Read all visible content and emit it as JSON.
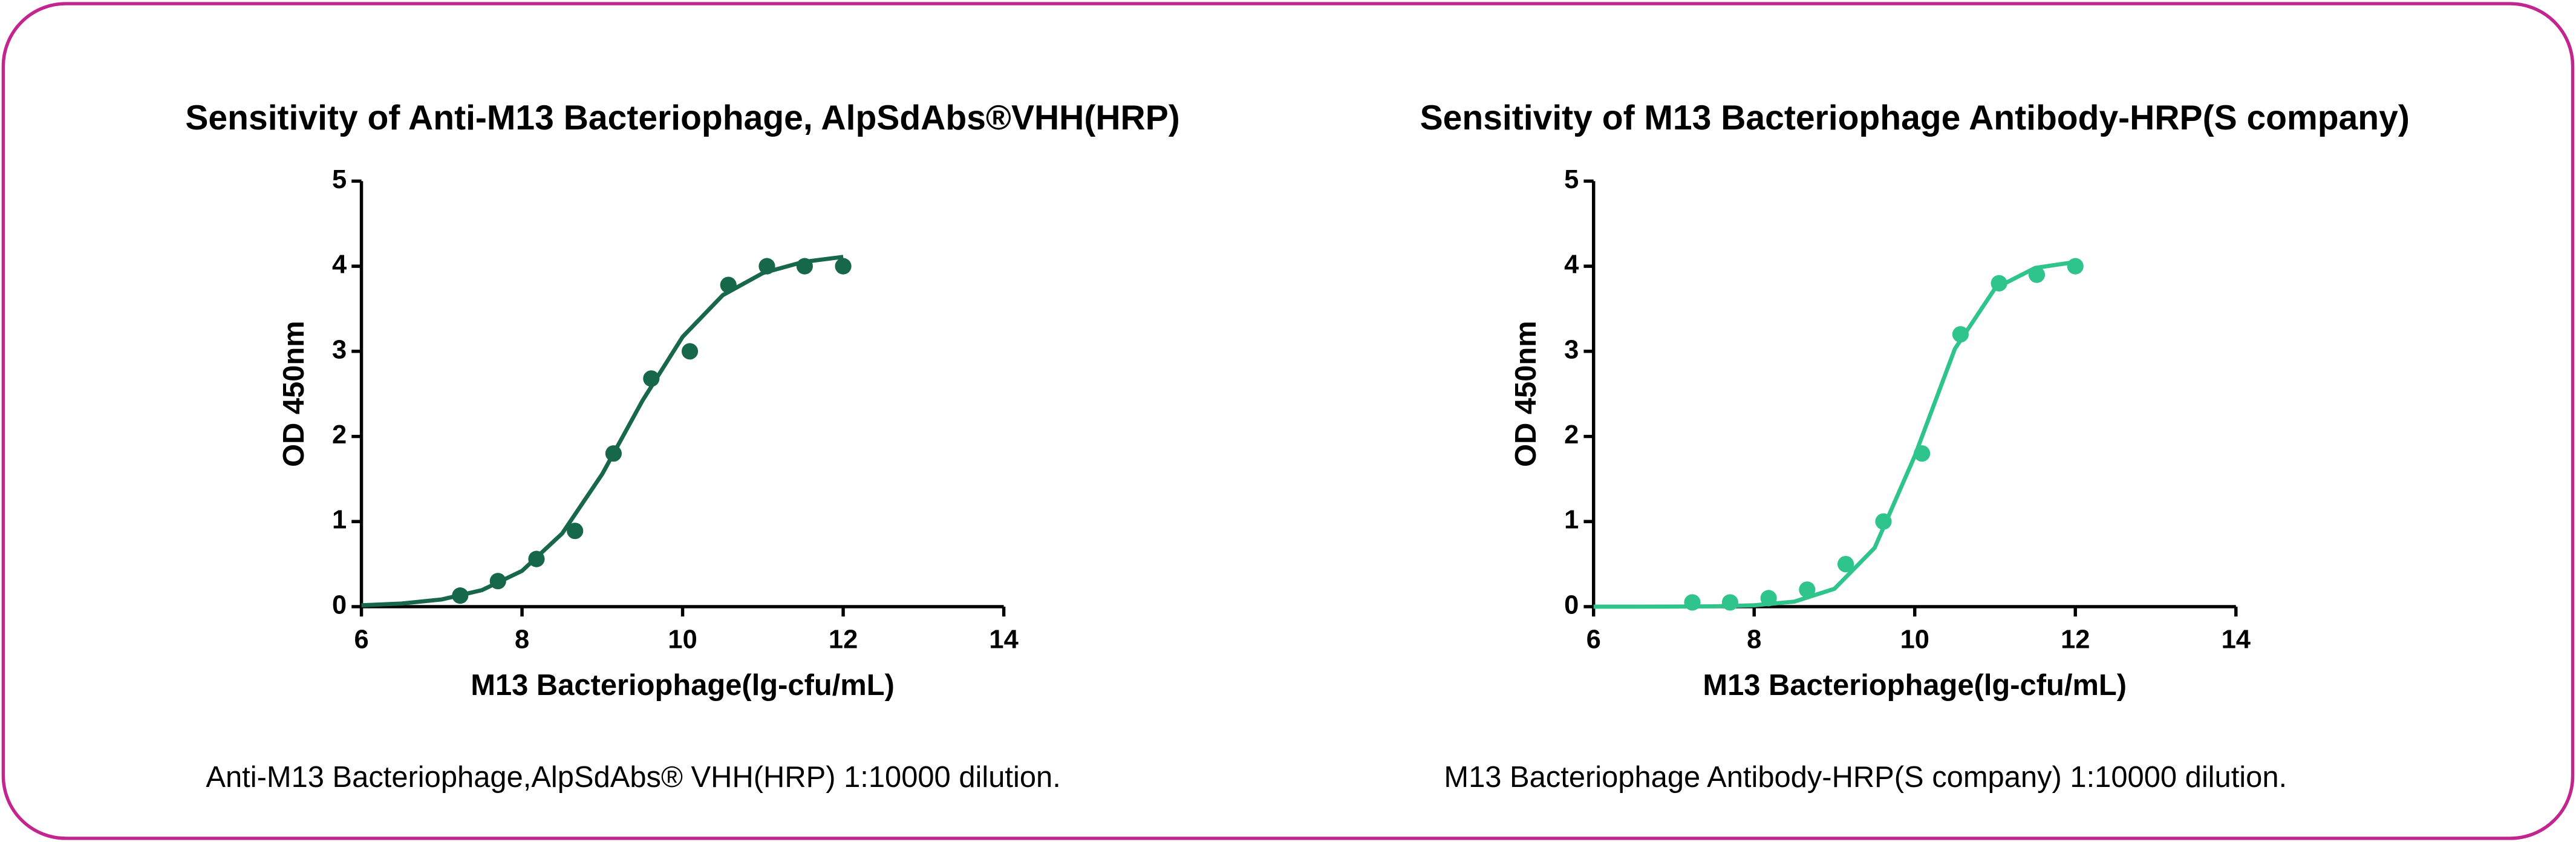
{
  "chart_data": [
    {
      "type": "scatter",
      "title": "Sensitivity of Anti-M13 Bacteriophage, AlpSdAbs®VHH(HRP)",
      "xlabel": "M13 Bacteriophage(lg-cfu/mL)",
      "ylabel": "OD 450nm",
      "caption": "Anti-M13 Bacteriophage,AlpSdAbs® VHH(HRP) 1:10000 dilution.",
      "xlim": [
        6,
        14
      ],
      "xticks": [
        6,
        8,
        10,
        12,
        14
      ],
      "ylim": [
        0,
        5
      ],
      "yticks": [
        0,
        1,
        2,
        3,
        4,
        5
      ],
      "series": [
        {
          "mode": "markers",
          "color": "#17684a",
          "x": [
            7.23,
            7.7,
            8.18,
            8.66,
            9.14,
            9.61,
            10.09,
            10.57,
            11.05,
            11.52,
            12
          ],
          "values": [
            0.13,
            0.3,
            0.56,
            0.89,
            1.8,
            2.68,
            3.0,
            3.78,
            4.0,
            4.0,
            4.0
          ]
        },
        {
          "mode": "line",
          "color": "#17684a",
          "x": [
            6,
            6.5,
            7,
            7.5,
            8,
            8.5,
            9,
            9.5,
            10,
            10.5,
            11,
            11.5,
            12
          ],
          "values": [
            0.016,
            0.037,
            0.085,
            0.194,
            0.42,
            0.86,
            1.56,
            2.42,
            3.17,
            3.66,
            3.92,
            4.05,
            4.11
          ]
        }
      ]
    },
    {
      "type": "scatter",
      "title": "Sensitivity of M13 Bacteriophage Antibody-HRP(S company)",
      "xlabel": "M13 Bacteriophage(lg-cfu/mL)",
      "ylabel": "OD 450nm",
      "caption": "M13 Bacteriophage Antibody-HRP(S company) 1:10000 dilution.",
      "xlim": [
        6,
        14
      ],
      "xticks": [
        6,
        8,
        10,
        12,
        14
      ],
      "ylim": [
        0,
        5
      ],
      "yticks": [
        0,
        1,
        2,
        3,
        4,
        5
      ],
      "series": [
        {
          "mode": "markers",
          "color": "#2ec48c",
          "x": [
            7.23,
            7.7,
            8.18,
            8.66,
            9.14,
            9.61,
            10.09,
            10.57,
            11.05,
            11.52,
            12
          ],
          "values": [
            0.05,
            0.05,
            0.1,
            0.2,
            0.5,
            1.0,
            1.8,
            3.2,
            3.8,
            3.9,
            4.0
          ]
        },
        {
          "mode": "line",
          "color": "#2ec48c",
          "x": [
            6,
            6.5,
            7,
            7.5,
            8,
            8.5,
            9,
            9.5,
            10,
            10.5,
            11,
            11.5,
            12
          ],
          "values": [
            0.0,
            0.0,
            0.001,
            0.004,
            0.016,
            0.059,
            0.21,
            0.69,
            1.77,
            3.03,
            3.74,
            3.98,
            4.05
          ]
        }
      ]
    }
  ]
}
